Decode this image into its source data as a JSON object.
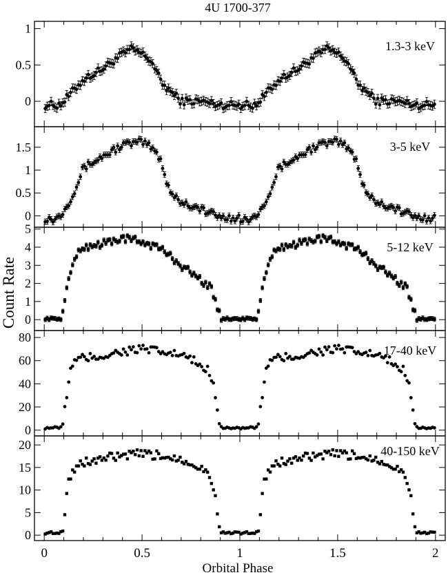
{
  "chart_data": {
    "type": "scatter",
    "title": "4U 1700-377",
    "xlabel": "Orbital Phase",
    "ylabel": "Count Rate",
    "xlim": [
      -0.05,
      2.05
    ],
    "xticks": [
      0,
      0.5,
      1,
      1.5,
      2
    ],
    "xtick_labels": [
      "0",
      "0.5",
      "1",
      "1.5",
      "2"
    ],
    "grid": false,
    "panels": [
      {
        "name": "1.3-3 keV",
        "ylim": [
          -0.35,
          1.1
        ],
        "yticks": [
          0,
          0.5,
          1
        ],
        "ytick_labels": [
          "0",
          "0.5",
          "1"
        ],
        "error_bars": true,
        "marker": "circle",
        "profile_phase": [
          0,
          0.08,
          0.1,
          0.15,
          0.2,
          0.3,
          0.4,
          0.45,
          0.5,
          0.55,
          0.6,
          0.7,
          0.8,
          0.9,
          1.0
        ],
        "profile_rate": [
          -0.05,
          -0.05,
          0.0,
          0.15,
          0.3,
          0.45,
          0.65,
          0.72,
          0.65,
          0.55,
          0.25,
          0.0,
          0.0,
          -0.05,
          -0.05
        ]
      },
      {
        "name": "3-5 keV",
        "ylim": [
          -0.25,
          1.95
        ],
        "yticks": [
          0,
          0.5,
          1,
          1.5
        ],
        "ytick_labels": [
          "0",
          "0.5",
          "1",
          "1.5"
        ],
        "error_bars": true,
        "marker": "circle",
        "profile_phase": [
          0,
          0.05,
          0.08,
          0.12,
          0.16,
          0.2,
          0.3,
          0.4,
          0.5,
          0.55,
          0.6,
          0.62,
          0.65,
          0.7,
          0.8,
          0.85,
          0.9,
          1.0
        ],
        "profile_rate": [
          -0.05,
          -0.08,
          0.0,
          0.25,
          0.6,
          1.05,
          1.3,
          1.55,
          1.62,
          1.5,
          1.2,
          0.8,
          0.5,
          0.3,
          0.15,
          0.05,
          -0.03,
          -0.05
        ]
      },
      {
        "name": "5-12 keV",
        "ylim": [
          -0.6,
          5.1
        ],
        "yticks": [
          0,
          1,
          2,
          3,
          4,
          5
        ],
        "ytick_labels": [
          "0",
          "1",
          "2",
          "3",
          "4",
          "5"
        ],
        "error_bars": true,
        "marker": "square",
        "profile_phase": [
          0,
          0.09,
          0.105,
          0.12,
          0.15,
          0.2,
          0.3,
          0.4,
          0.5,
          0.6,
          0.7,
          0.8,
          0.85,
          0.88,
          0.9,
          0.92,
          1.0
        ],
        "profile_rate": [
          0.05,
          0.05,
          1.0,
          2.0,
          3.3,
          4.0,
          4.2,
          4.5,
          4.3,
          3.9,
          3.0,
          2.2,
          1.8,
          0.8,
          0.2,
          0.05,
          0.05
        ]
      },
      {
        "name": "17-40 keV",
        "ylim": [
          -5,
          86
        ],
        "yticks": [
          0,
          20,
          40,
          60,
          80
        ],
        "ytick_labels": [
          "0",
          "20",
          "40",
          "60",
          "80"
        ],
        "error_bars": false,
        "marker": "circle",
        "profile_phase": [
          0,
          0.09,
          0.1,
          0.11,
          0.13,
          0.16,
          0.2,
          0.3,
          0.4,
          0.5,
          0.6,
          0.7,
          0.8,
          0.85,
          0.87,
          0.89,
          0.9,
          0.92,
          1.0
        ],
        "profile_rate": [
          2,
          2,
          10,
          25,
          50,
          60,
          62,
          64,
          68,
          70,
          67,
          65,
          56,
          50,
          35,
          15,
          3,
          2,
          2
        ]
      },
      {
        "name": "40-150 keV",
        "ylim": [
          -1.2,
          22
        ],
        "yticks": [
          0,
          5,
          10,
          15,
          20
        ],
        "ytick_labels": [
          "0",
          "5",
          "10",
          "15",
          "20"
        ],
        "error_bars": false,
        "marker": "square",
        "profile_phase": [
          0,
          0.09,
          0.1,
          0.11,
          0.13,
          0.16,
          0.2,
          0.3,
          0.4,
          0.5,
          0.6,
          0.7,
          0.8,
          0.85,
          0.87,
          0.89,
          0.9,
          0.92,
          1.0
        ],
        "profile_rate": [
          0.5,
          0.6,
          3,
          8,
          13,
          15,
          16,
          17,
          17.5,
          18,
          17.5,
          17,
          15,
          13,
          10,
          4,
          0.7,
          0.5,
          0.5
        ]
      }
    ]
  }
}
